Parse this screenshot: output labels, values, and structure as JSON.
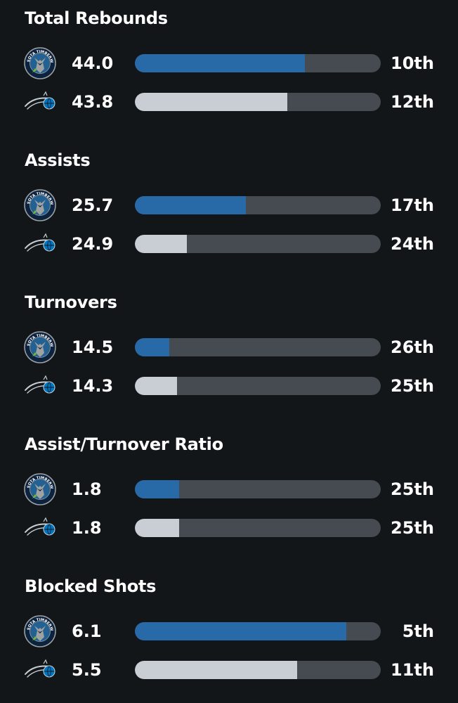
{
  "colors": {
    "background": "#131619",
    "track": "#464a51",
    "team1_bar": "#286aa8",
    "team2_bar": "#c9ced4",
    "text": "#ffffff"
  },
  "teams": [
    {
      "id": "minnesota",
      "logo_icon": "timberwolves-logo-icon",
      "logo_text": "MINNESOTA TIMBERWOLVES"
    },
    {
      "id": "orlando",
      "logo_icon": "magic-logo-icon"
    }
  ],
  "stats": [
    {
      "title": "Total Rebounds",
      "rows": [
        {
          "team": "minnesota",
          "value": "44.0",
          "rank": "10th",
          "fill": 0.69
        },
        {
          "team": "orlando",
          "value": "43.8",
          "rank": "12th",
          "fill": 0.62
        }
      ]
    },
    {
      "title": "Assists",
      "rows": [
        {
          "team": "minnesota",
          "value": "25.7",
          "rank": "17th",
          "fill": 0.45
        },
        {
          "team": "orlando",
          "value": "24.9",
          "rank": "24th",
          "fill": 0.21
        }
      ]
    },
    {
      "title": "Turnovers",
      "rows": [
        {
          "team": "minnesota",
          "value": "14.5",
          "rank": "26th",
          "fill": 0.14
        },
        {
          "team": "orlando",
          "value": "14.3",
          "rank": "25th",
          "fill": 0.17
        }
      ]
    },
    {
      "title": "Assist/Turnover Ratio",
      "rows": [
        {
          "team": "minnesota",
          "value": "1.8",
          "rank": "25th",
          "fill": 0.18
        },
        {
          "team": "orlando",
          "value": "1.8",
          "rank": "25th",
          "fill": 0.18
        }
      ]
    },
    {
      "title": "Blocked Shots",
      "rows": [
        {
          "team": "minnesota",
          "value": "6.1",
          "rank": "5th",
          "fill": 0.86
        },
        {
          "team": "orlando",
          "value": "5.5",
          "rank": "11th",
          "fill": 0.66
        }
      ]
    }
  ]
}
